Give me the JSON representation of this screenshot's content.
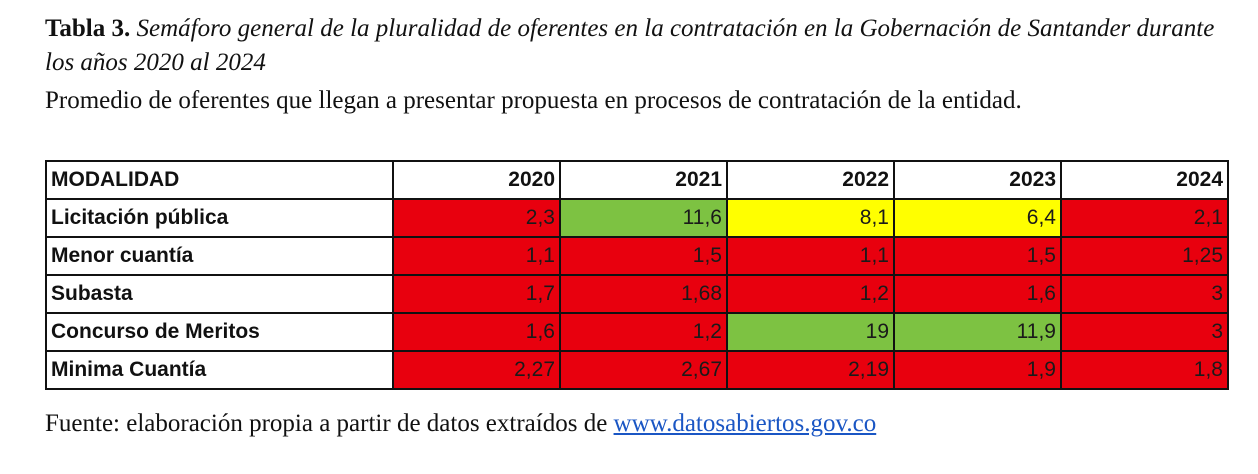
{
  "header": {
    "label": "Tabla 3.",
    "title": "Semáforo general de la pluralidad de oferentes en la contratación en la Gobernación de Santander durante los años 2020 al 2024",
    "subtitle": "Promedio de oferentes que llegan a presentar propuesta en procesos de contratación de la entidad."
  },
  "table": {
    "columns": [
      "MODALIDAD",
      "2020",
      "2021",
      "2022",
      "2023",
      "2024"
    ],
    "rows": [
      [
        "Licitación pública",
        "2,3",
        "11,6",
        "8,1",
        "6,4",
        "2,1"
      ],
      [
        "Menor cuantía",
        "1,1",
        "1,5",
        "1,1",
        "1,5",
        "1,25"
      ],
      [
        "Subasta",
        "1,7",
        "1,68",
        "1,2",
        "1,6",
        "3"
      ],
      [
        "Concurso de Meritos",
        "1,6",
        "1,2",
        "19",
        "11,9",
        "3"
      ],
      [
        "Minima Cuantía",
        "2,27",
        "2,67",
        "2,19",
        "1,9",
        "1,8"
      ]
    ],
    "cell_colors": [
      [
        "#e8000e",
        "#7dc242",
        "#ffff00",
        "#ffff00",
        "#e8000e"
      ],
      [
        "#e8000e",
        "#e8000e",
        "#e8000e",
        "#e8000e",
        "#e8000e"
      ],
      [
        "#e8000e",
        "#e8000e",
        "#e8000e",
        "#e8000e",
        "#e8000e"
      ],
      [
        "#e8000e",
        "#e8000e",
        "#7dc242",
        "#7dc242",
        "#e8000e"
      ],
      [
        "#e8000e",
        "#e8000e",
        "#e8000e",
        "#e8000e",
        "#e8000e"
      ]
    ]
  },
  "footer": {
    "text": "Fuente: elaboración propia a partir de datos extraídos de",
    "link": "www.datosabiertos.gov.co"
  }
}
